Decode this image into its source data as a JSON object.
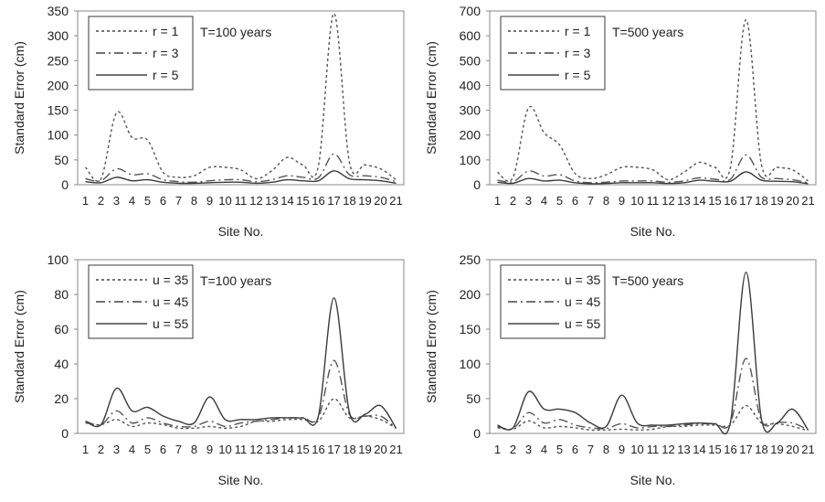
{
  "chart_data": [
    {
      "type": "line",
      "ylabel": "Standard Error (cm)",
      "xlabel": "Site No.",
      "annotation": "T=100 years",
      "categories": [
        "1",
        "2",
        "3",
        "4",
        "5",
        "6",
        "7",
        "8",
        "9",
        "10",
        "11",
        "12",
        "13",
        "14",
        "15",
        "16",
        "17",
        "18",
        "19",
        "20",
        "21"
      ],
      "ylim": [
        0,
        350
      ],
      "yticks": [
        0,
        50,
        100,
        150,
        200,
        250,
        300,
        350
      ],
      "legend_position": "top-left",
      "grid": false,
      "series": [
        {
          "name": "r = 1",
          "dash": "dotted",
          "values": [
            35,
            12,
            145,
            95,
            90,
            25,
            15,
            18,
            35,
            35,
            30,
            12,
            28,
            55,
            40,
            38,
            345,
            45,
            40,
            32,
            10
          ]
        },
        {
          "name": "r = 3",
          "dash": "dashdot",
          "values": [
            12,
            8,
            32,
            20,
            22,
            10,
            6,
            5,
            8,
            10,
            10,
            6,
            10,
            18,
            15,
            14,
            62,
            20,
            18,
            15,
            6
          ]
        },
        {
          "name": "r = 5",
          "dash": "solid",
          "values": [
            6,
            4,
            15,
            8,
            10,
            5,
            3,
            3,
            4,
            5,
            5,
            3,
            5,
            10,
            8,
            8,
            28,
            12,
            10,
            8,
            3
          ]
        }
      ]
    },
    {
      "type": "line",
      "ylabel": "Standard Error (cm)",
      "xlabel": "Site No.",
      "annotation": "T=500 years",
      "categories": [
        "1",
        "2",
        "3",
        "4",
        "5",
        "6",
        "7",
        "8",
        "9",
        "10",
        "11",
        "12",
        "13",
        "14",
        "15",
        "16",
        "17",
        "18",
        "19",
        "20",
        "21"
      ],
      "ylim": [
        0,
        700
      ],
      "yticks": [
        0,
        100,
        200,
        300,
        400,
        500,
        600,
        700
      ],
      "legend_position": "top-left",
      "grid": false,
      "series": [
        {
          "name": "r = 1",
          "dash": "dotted",
          "values": [
            50,
            30,
            310,
            210,
            160,
            45,
            25,
            40,
            70,
            70,
            60,
            20,
            50,
            90,
            70,
            70,
            665,
            80,
            70,
            60,
            15
          ]
        },
        {
          "name": "r = 3",
          "dash": "dashdot",
          "values": [
            18,
            12,
            55,
            35,
            40,
            15,
            8,
            10,
            15,
            15,
            15,
            10,
            15,
            28,
            22,
            22,
            120,
            30,
            25,
            20,
            8
          ]
        },
        {
          "name": "r = 5",
          "dash": "solid",
          "values": [
            10,
            6,
            25,
            15,
            18,
            8,
            4,
            5,
            8,
            8,
            8,
            5,
            8,
            18,
            14,
            14,
            52,
            18,
            14,
            12,
            4
          ]
        }
      ]
    },
    {
      "type": "line",
      "ylabel": "Standard Error (cm)",
      "xlabel": "Site No.",
      "annotation": "T=100 years",
      "categories": [
        "1",
        "2",
        "3",
        "4",
        "5",
        "6",
        "7",
        "8",
        "9",
        "10",
        "11",
        "12",
        "13",
        "14",
        "15",
        "16",
        "17",
        "18",
        "19",
        "20",
        "21"
      ],
      "ylim": [
        0,
        100
      ],
      "yticks": [
        0,
        20,
        40,
        60,
        80,
        100
      ],
      "legend_position": "top-left",
      "grid": false,
      "series": [
        {
          "name": "u = 35",
          "dash": "dotted",
          "values": [
            6,
            5,
            8,
            4,
            6,
            5,
            3,
            3,
            4,
            3,
            4,
            7,
            7,
            8,
            8,
            7,
            20,
            9,
            10,
            8,
            3
          ]
        },
        {
          "name": "u = 45",
          "dash": "dashdot",
          "values": [
            7,
            5,
            13,
            6,
            9,
            6,
            4,
            4,
            7,
            4,
            6,
            7,
            8,
            9,
            9,
            9,
            42,
            11,
            10,
            10,
            3
          ]
        },
        {
          "name": "u = 55",
          "dash": "solid",
          "values": [
            7,
            5,
            26,
            13,
            15,
            10,
            7,
            6,
            21,
            8,
            8,
            8,
            9,
            9,
            9,
            10,
            78,
            12,
            11,
            16,
            3
          ]
        }
      ]
    },
    {
      "type": "line",
      "ylabel": "Standard Error (cm)",
      "xlabel": "Site No.",
      "annotation": "T=500 years",
      "categories": [
        "1",
        "2",
        "3",
        "4",
        "5",
        "6",
        "7",
        "8",
        "9",
        "10",
        "11",
        "12",
        "13",
        "14",
        "15",
        "16",
        "17",
        "18",
        "19",
        "20",
        "21"
      ],
      "ylim": [
        0,
        250
      ],
      "yticks": [
        0,
        50,
        100,
        150,
        200,
        250
      ],
      "legend_position": "top-left",
      "grid": false,
      "series": [
        {
          "name": "u = 35",
          "dash": "dotted",
          "values": [
            8,
            6,
            18,
            8,
            10,
            8,
            5,
            5,
            6,
            5,
            6,
            10,
            10,
            12,
            12,
            12,
            40,
            15,
            14,
            10,
            4
          ]
        },
        {
          "name": "u = 45",
          "dash": "dashdot",
          "values": [
            10,
            7,
            30,
            15,
            20,
            12,
            8,
            7,
            14,
            8,
            10,
            10,
            12,
            14,
            14,
            15,
            108,
            18,
            16,
            15,
            5
          ]
        },
        {
          "name": "u = 55",
          "dash": "solid",
          "values": [
            12,
            8,
            60,
            35,
            35,
            30,
            15,
            10,
            55,
            15,
            12,
            12,
            14,
            15,
            14,
            16,
            232,
            20,
            15,
            35,
            5
          ]
        }
      ]
    }
  ]
}
